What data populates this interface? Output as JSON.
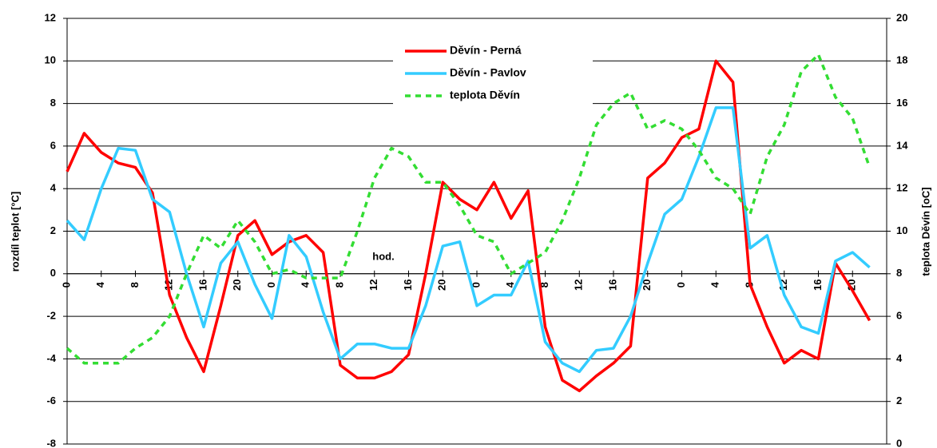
{
  "chart_data": {
    "type": "line",
    "y_label": "rozdíl teplot [°C]",
    "y2_label": "teplota Děvín [oC]",
    "annotation": "hod.",
    "x": [
      0,
      2,
      4,
      6,
      8,
      10,
      12,
      14,
      16,
      18,
      20,
      22,
      24,
      26,
      28,
      30,
      32,
      34,
      36,
      38,
      40,
      42,
      44,
      46,
      48,
      50,
      52,
      54,
      56,
      58,
      60,
      62,
      64,
      66,
      68,
      70,
      72,
      74,
      76,
      78,
      80,
      82,
      84,
      86,
      88,
      90,
      92,
      94
    ],
    "xlim": [
      0,
      96
    ],
    "xticks": [
      0,
      4,
      8,
      12,
      16,
      20,
      {
        "value": 24,
        "label": "0"
      },
      {
        "value": 28,
        "label": "4"
      },
      {
        "value": 32,
        "label": "8"
      },
      {
        "value": 36,
        "label": "12"
      },
      {
        "value": 40,
        "label": "16"
      },
      {
        "value": 44,
        "label": "20"
      },
      {
        "value": 48,
        "label": "0"
      },
      {
        "value": 52,
        "label": "4"
      },
      {
        "value": 56,
        "label": "8"
      },
      {
        "value": 60,
        "label": "12"
      },
      {
        "value": 64,
        "label": "16"
      },
      {
        "value": 68,
        "label": "20"
      },
      {
        "value": 72,
        "label": "0"
      },
      {
        "value": 76,
        "label": "4"
      },
      {
        "value": 80,
        "label": "8"
      },
      {
        "value": 84,
        "label": "12"
      },
      {
        "value": 88,
        "label": "16"
      },
      {
        "value": 92,
        "label": "20"
      }
    ],
    "ylim": [
      -8,
      12
    ],
    "yticks": [
      -8,
      -6,
      -4,
      -2,
      0,
      2,
      4,
      6,
      8,
      10,
      12
    ],
    "y2lim": [
      0,
      20
    ],
    "y2ticks": [
      0,
      2,
      4,
      6,
      8,
      10,
      12,
      14,
      16,
      18,
      20
    ],
    "grid": true,
    "legend": "top-center",
    "series": [
      {
        "name": "Děvín - Perná",
        "color": "#ff0000",
        "dash": "solid",
        "values": [
          4.8,
          6.6,
          5.7,
          5.2,
          5.0,
          3.8,
          -1.0,
          -3.0,
          -4.6,
          -1.5,
          1.8,
          2.5,
          0.9,
          1.5,
          1.8,
          1.0,
          -4.3,
          -4.9,
          -4.9,
          -4.6,
          -3.8,
          0.0,
          4.3,
          3.5,
          3.0,
          4.3,
          2.6,
          3.9,
          -2.5,
          -5.0,
          -5.5,
          -4.8,
          -4.2,
          -3.4,
          4.5,
          5.2,
          6.4,
          6.8,
          10.0,
          9.0,
          -0.5,
          -2.5,
          -4.2,
          -3.6,
          -4.0,
          0.5,
          -0.8,
          -2.2
        ]
      },
      {
        "name": "Děvín - Pavlov",
        "color": "#33ccff",
        "dash": "solid",
        "values": [
          2.5,
          1.6,
          4.0,
          5.9,
          5.8,
          3.5,
          2.9,
          0.0,
          -2.5,
          0.5,
          1.5,
          -0.5,
          -2.1,
          1.8,
          0.8,
          -1.8,
          -4.0,
          -3.3,
          -3.3,
          -3.5,
          -3.5,
          -1.5,
          1.3,
          1.5,
          -1.5,
          -1.0,
          -1.0,
          0.6,
          -3.2,
          -4.2,
          -4.6,
          -3.6,
          -3.5,
          -2.0,
          0.5,
          2.8,
          3.5,
          5.5,
          7.8,
          7.8,
          1.2,
          1.8,
          -1.0,
          -2.5,
          -2.8,
          0.6,
          1.0,
          0.3
        ]
      },
      {
        "name": "teplota Děvín",
        "color": "#33dd33",
        "dash": "dashed",
        "axis": "y2",
        "values": [
          4.5,
          3.8,
          3.8,
          3.8,
          4.5,
          5.0,
          6.0,
          8.0,
          9.8,
          9.2,
          10.5,
          9.5,
          8.0,
          8.2,
          7.8,
          7.8,
          7.8,
          10.0,
          12.5,
          13.9,
          13.5,
          12.3,
          12.3,
          11.2,
          9.8,
          9.5,
          8.0,
          8.5,
          9.0,
          10.5,
          12.5,
          15.0,
          16.0,
          16.5,
          14.8,
          15.2,
          14.8,
          13.8,
          12.5,
          12.0,
          10.8,
          13.5,
          15.0,
          17.5,
          18.3,
          16.3,
          15.3,
          13.0
        ]
      }
    ]
  }
}
